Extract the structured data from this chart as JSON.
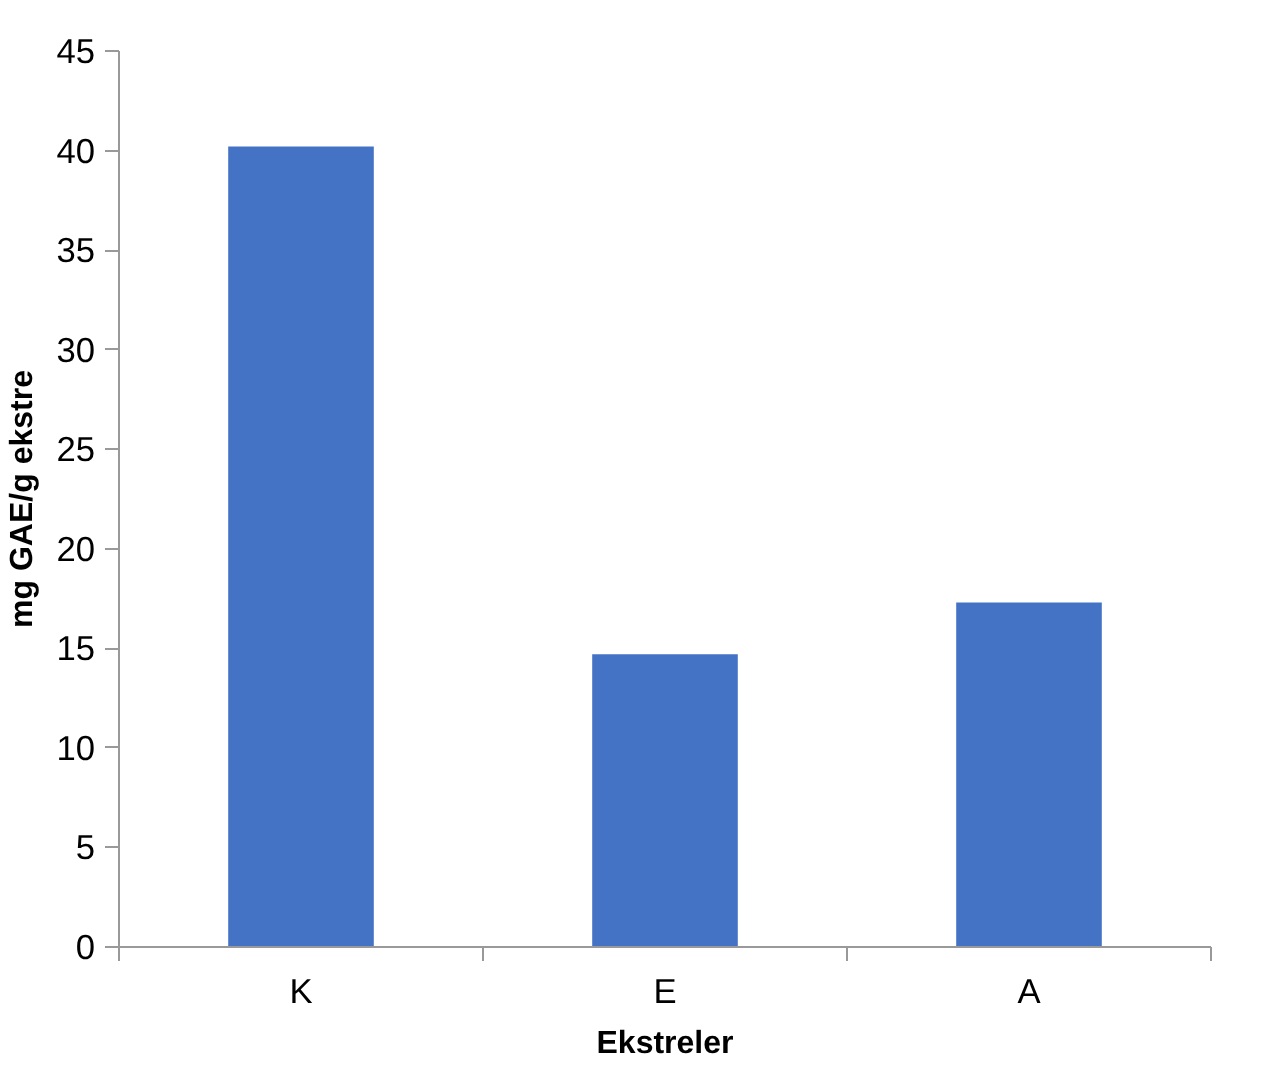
{
  "chart_data": {
    "type": "bar",
    "xlabel": "Ekstreler",
    "ylabel": "mg GAE/g ekstre",
    "categories": [
      "K",
      "E",
      "A"
    ],
    "values": [
      40.2,
      14.7,
      17.3
    ],
    "color": "#4472c4",
    "ylim": [
      0,
      45
    ],
    "yticks": [
      0,
      5,
      10,
      15,
      20,
      25,
      30,
      35,
      40,
      45
    ],
    "grid": false
  }
}
